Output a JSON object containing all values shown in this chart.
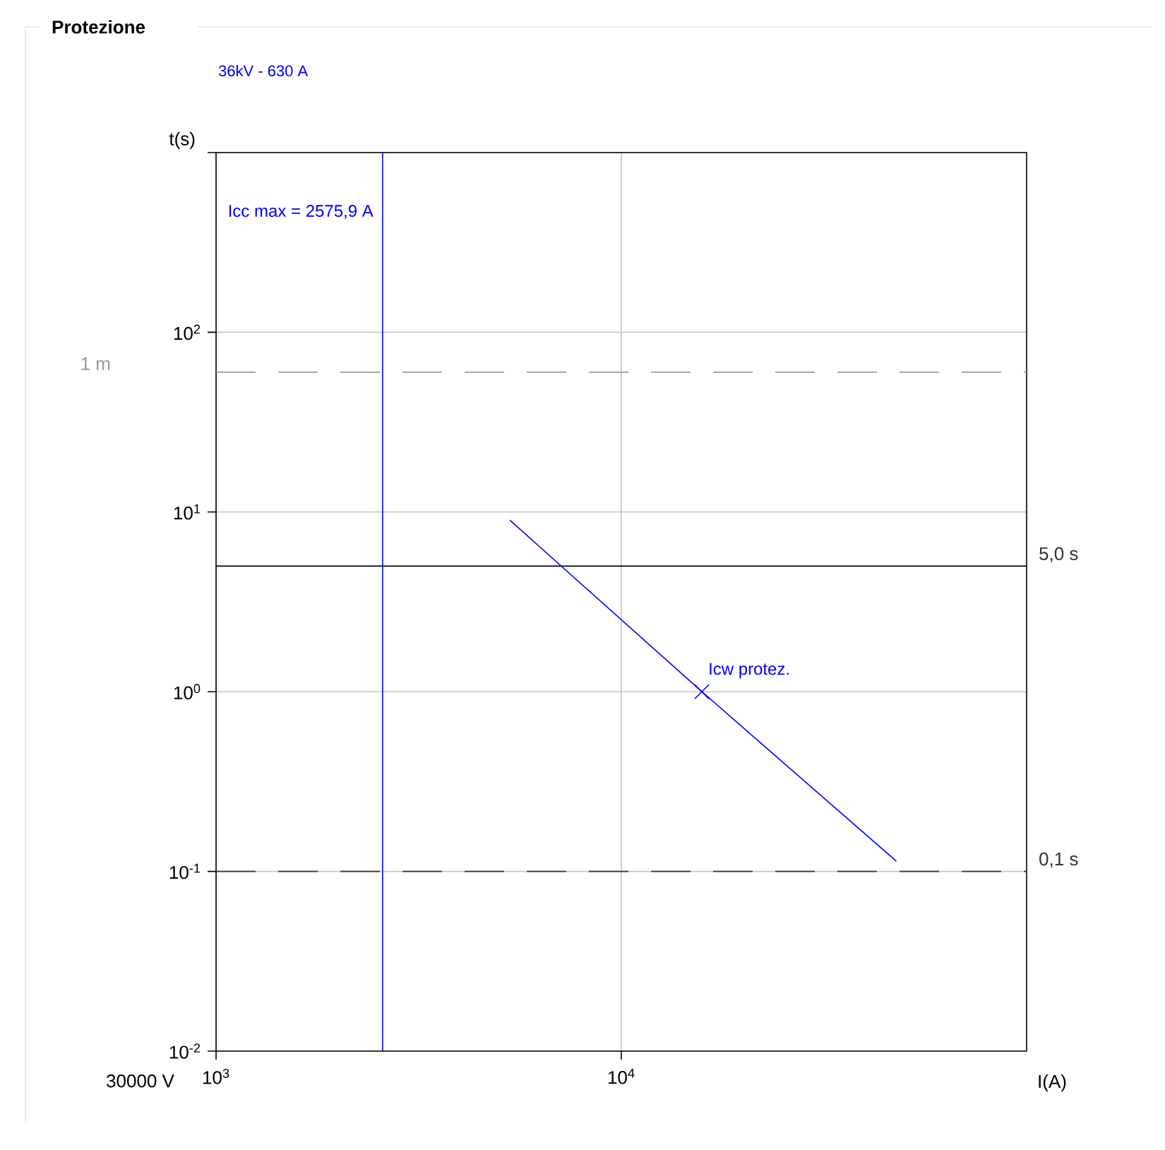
{
  "chart_data": {
    "type": "line",
    "title": "Protezione",
    "subtitle": "36kV - 630 A",
    "xlabel": "I(A)",
    "ylabel": "t(s)",
    "x": [
      5310,
      15800,
      47700
    ],
    "series": [
      {
        "color": "#0000ff",
        "values": [
          9,
          1,
          0.114
        ]
      },
      {
        "type": "scatter",
        "x": [
          15800
        ],
        "values": [
          1
        ],
        "color": "#0000ff",
        "marker": "cross"
      }
    ],
    "log": "xy",
    "xlim": [
      1000,
      100000
    ],
    "ylim": [
      0.01,
      1000
    ],
    "xticks": [
      {
        "value": 1000,
        "label": "10$^{3}$"
      },
      {
        "value": 10000,
        "label": "10$^{4}$"
      }
    ],
    "yticks": [
      {
        "value": 0.01,
        "label": "10$^{-2}$"
      },
      {
        "value": 0.1,
        "label": "10$^{-1}$"
      },
      {
        "value": 1,
        "label": "10$^{0}$"
      },
      {
        "value": 10,
        "label": "10$^{1}$"
      },
      {
        "value": 100,
        "label": "10$^{2}$"
      },
      {
        "value": 1000,
        "label": null
      }
    ],
    "grid": true,
    "ref_lines": [
      {
        "axis": "x",
        "value": 2575.9,
        "label": "Icc max = 2575,9 A",
        "color": "#0000ff",
        "line_style": "solid"
      },
      {
        "axis": "y",
        "value": 60,
        "label": "1 m",
        "color": "#999999",
        "line_style": "dashed"
      },
      {
        "axis": "y",
        "value": 5,
        "label": "5,0 s",
        "color": "#000000",
        "line_style": "solid"
      },
      {
        "axis": "y",
        "value": 0.1,
        "label": "0,1 s",
        "color": "#333333",
        "line_style": "dashed"
      }
    ],
    "annotations": [
      "30000 V",
      {
        "text": "Icw protez.",
        "x": 15800,
        "y": 1
      }
    ]
  }
}
